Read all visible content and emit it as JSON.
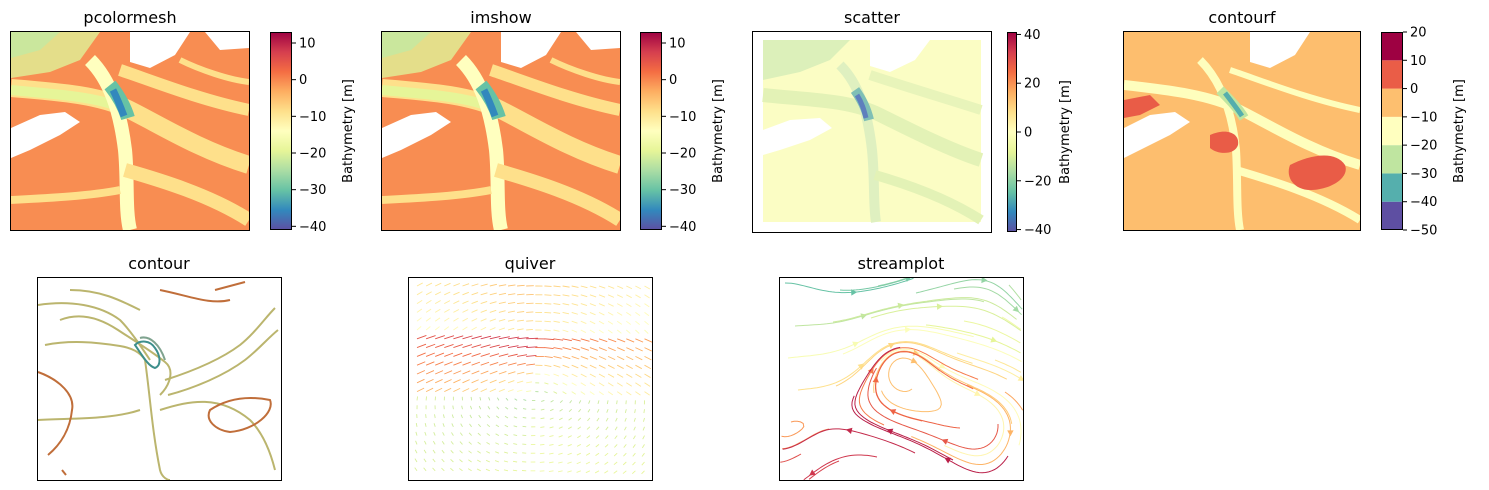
{
  "figure": {
    "colormap": "Spectral",
    "colors": {
      "spectral": [
        "#5e4fa2",
        "#3288bd",
        "#66c2a5",
        "#abdda4",
        "#e6f598",
        "#ffffbf",
        "#fee08b",
        "#fdae61",
        "#f46d43",
        "#d53e4f",
        "#9e0142"
      ],
      "land": "#ffffff",
      "frame": "#000000"
    }
  },
  "chart_data": [
    {
      "type": "heatmap",
      "title": "pcolormesh",
      "colorbar": {
        "label": "Bathymetry [m]",
        "range": [
          -41,
          13
        ],
        "ticks": [
          10,
          0,
          -10,
          -20,
          -30,
          -40
        ],
        "tick_labels": [
          "10",
          "0",
          "−10",
          "−20",
          "−30",
          "−40"
        ]
      }
    },
    {
      "type": "heatmap",
      "title": "imshow",
      "colorbar": {
        "label": "Bathymetry [m]",
        "range": [
          -41,
          13
        ],
        "ticks": [
          10,
          0,
          -10,
          -20,
          -30,
          -40
        ],
        "tick_labels": [
          "10",
          "0",
          "−10",
          "−20",
          "−30",
          "−40"
        ]
      }
    },
    {
      "type": "scatter",
      "title": "scatter",
      "colorbar": {
        "label": "Bathymetry [m]",
        "range": [
          -41,
          41
        ],
        "ticks": [
          40,
          20,
          0,
          -20,
          -40
        ],
        "tick_labels": [
          "40",
          "20",
          "0",
          "−20",
          "−40"
        ]
      }
    },
    {
      "type": "heatmap",
      "title": "contourf",
      "colorbar": {
        "label": "Bathymetry [m]",
        "range": [
          -50,
          20
        ],
        "levels": [
          -50,
          -40,
          -30,
          -20,
          -10,
          0,
          10,
          20
        ],
        "tick_labels": [
          "20",
          "10",
          "0",
          "−10",
          "−20",
          "−30",
          "−40",
          "−50"
        ]
      }
    },
    {
      "type": "line",
      "title": "contour"
    },
    {
      "type": "scatter",
      "title": "quiver"
    },
    {
      "type": "line",
      "title": "streamplot"
    }
  ]
}
